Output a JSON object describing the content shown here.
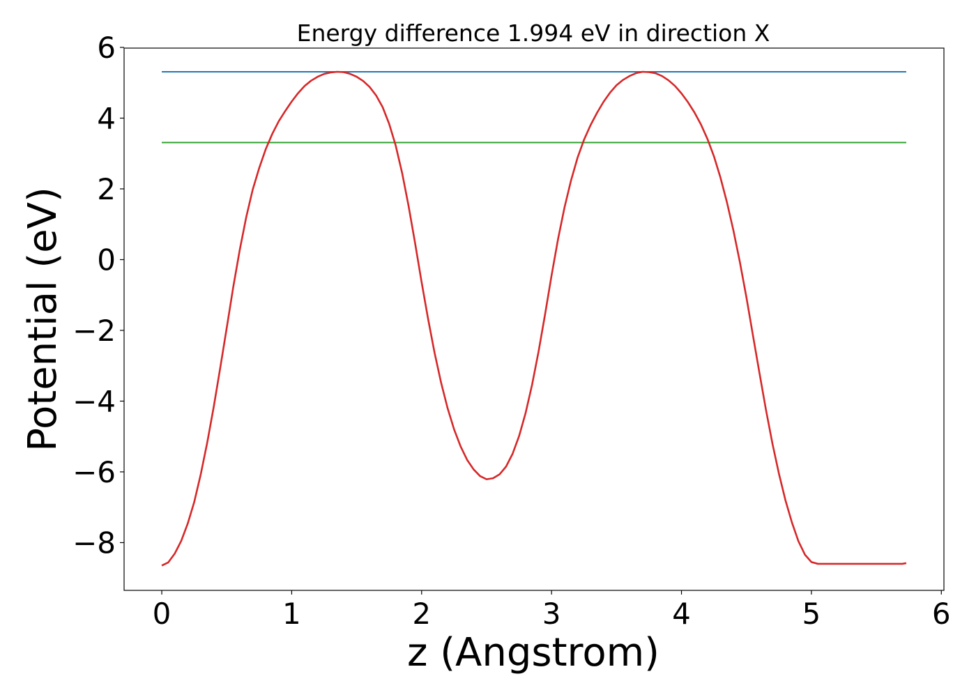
{
  "chart_data": {
    "type": "line",
    "title": "Energy difference 1.994 eV in direction X",
    "xlabel": "z (Angstrom)",
    "ylabel": "Potential (eV)",
    "xlim": [
      -0.29,
      6.02
    ],
    "ylim": [
      -9.35,
      5.98
    ],
    "xticks": [
      0,
      1,
      2,
      3,
      4,
      5,
      6
    ],
    "xtick_labels": [
      "0",
      "1",
      "2",
      "3",
      "4",
      "5",
      "6"
    ],
    "yticks": [
      -8,
      -6,
      -4,
      -2,
      0,
      2,
      4,
      6
    ],
    "ytick_labels": [
      "−8",
      "−6",
      "−4",
      "−2",
      "0",
      "2",
      "4",
      "6"
    ],
    "grid": false,
    "legend": "none",
    "series": [
      {
        "color": "#1f77b4",
        "x": [
          0,
          5.73
        ],
        "y": [
          5.31,
          5.31
        ]
      },
      {
        "color": "#2ca02c",
        "x": [
          0,
          5.73
        ],
        "y": [
          3.31,
          3.31
        ]
      },
      {
        "color": "#d62728",
        "x": [
          0.0,
          0.05,
          0.1,
          0.15,
          0.2,
          0.25,
          0.3,
          0.35,
          0.4,
          0.45,
          0.5,
          0.55,
          0.6,
          0.65,
          0.7,
          0.75,
          0.8,
          0.85,
          0.9,
          0.95,
          1.0,
          1.05,
          1.1,
          1.15,
          1.2,
          1.25,
          1.3,
          1.35,
          1.4,
          1.45,
          1.5,
          1.55,
          1.6,
          1.65,
          1.7,
          1.75,
          1.8,
          1.85,
          1.9,
          1.95,
          2.0,
          2.05,
          2.1,
          2.15,
          2.2,
          2.25,
          2.3,
          2.35,
          2.4,
          2.45,
          2.5,
          2.55,
          2.6,
          2.65,
          2.7,
          2.75,
          2.8,
          2.85,
          2.9,
          2.95,
          3.0,
          3.05,
          3.1,
          3.15,
          3.2,
          3.25,
          3.3,
          3.35,
          3.4,
          3.45,
          3.5,
          3.55,
          3.6,
          3.65,
          3.7,
          3.75,
          3.8,
          3.85,
          3.9,
          3.95,
          4.0,
          4.05,
          4.1,
          4.15,
          4.2,
          4.25,
          4.3,
          4.35,
          4.4,
          4.45,
          4.5,
          4.55,
          4.6,
          4.65,
          4.7,
          4.75,
          4.8,
          4.85,
          4.9,
          4.95,
          5.0,
          5.05,
          5.1,
          5.15,
          5.2,
          5.25,
          5.3,
          5.35,
          5.4,
          5.45,
          5.5,
          5.55,
          5.6,
          5.65,
          5.7,
          5.73
        ],
        "y": [
          -8.65,
          -8.56,
          -8.31,
          -7.95,
          -7.46,
          -6.85,
          -6.07,
          -5.17,
          -4.16,
          -3.06,
          -1.93,
          -0.78,
          0.27,
          1.2,
          1.98,
          2.59,
          3.12,
          3.55,
          3.91,
          4.2,
          4.47,
          4.71,
          4.91,
          5.06,
          5.17,
          5.25,
          5.29,
          5.31,
          5.3,
          5.25,
          5.17,
          5.05,
          4.88,
          4.64,
          4.31,
          3.84,
          3.23,
          2.45,
          1.51,
          0.46,
          -0.64,
          -1.68,
          -2.64,
          -3.48,
          -4.2,
          -4.8,
          -5.28,
          -5.66,
          -5.93,
          -6.12,
          -6.21,
          -6.18,
          -6.07,
          -5.85,
          -5.49,
          -4.99,
          -4.34,
          -3.54,
          -2.6,
          -1.55,
          -0.45,
          0.58,
          1.48,
          2.24,
          2.88,
          3.39,
          3.8,
          4.15,
          4.46,
          4.72,
          4.93,
          5.08,
          5.19,
          5.27,
          5.31,
          5.3,
          5.27,
          5.19,
          5.07,
          4.91,
          4.7,
          4.45,
          4.16,
          3.82,
          3.41,
          2.92,
          2.32,
          1.62,
          0.82,
          -0.08,
          -1.07,
          -2.14,
          -3.2,
          -4.24,
          -5.2,
          -6.05,
          -6.8,
          -7.43,
          -7.96,
          -8.34,
          -8.55,
          -8.6,
          -8.6,
          -8.6,
          -8.6,
          -8.6,
          -8.6,
          -8.6,
          -8.6,
          -8.6,
          -8.6,
          -8.6,
          -8.6,
          -8.6,
          -8.6,
          -8.58
        ]
      }
    ]
  }
}
